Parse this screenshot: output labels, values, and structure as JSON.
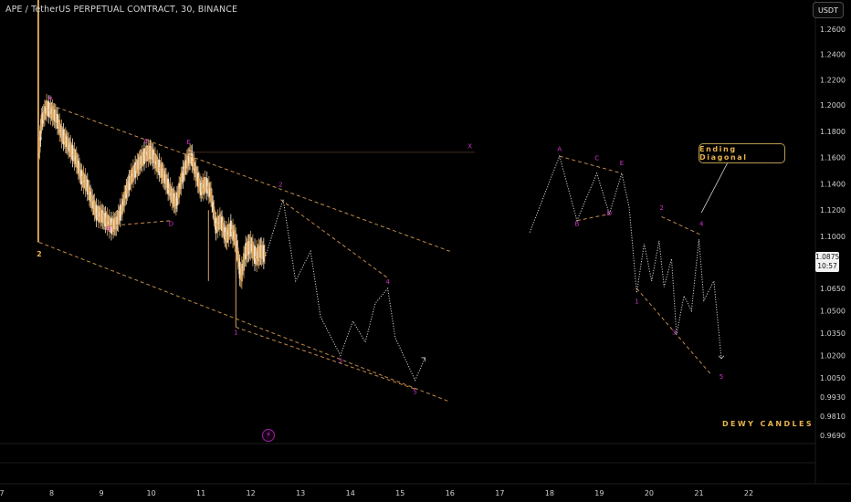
{
  "header": {
    "symbol_title": "APE / TetherUS PERPETUAL CONTRACT, 30, BINANCE",
    "currency_button": "USDT"
  },
  "price_badge": {
    "price": "1.0875",
    "countdown": "10:57"
  },
  "callout_label": "Ending Diagonal",
  "signature": "DEWY CANDLES",
  "lightning_icon": "lightning-icon",
  "colors": {
    "background": "#000000",
    "candle": "#d9a35c",
    "candle_alt": "#f0e6d8",
    "wave_label": "#cc33cc",
    "trendline": "#c08a4a",
    "projection": "#cfcfcf",
    "accent": "#e8b34b"
  },
  "chart_data": {
    "type": "line",
    "title": "APE / TetherUS PERPETUAL CONTRACT, 30, BINANCE",
    "y_axis_ticks": [
      "1.2600",
      "1.2400",
      "1.2200",
      "1.2000",
      "1.1800",
      "1.1600",
      "1.1400",
      "1.1200",
      "1.1000",
      "1.0650",
      "1.0500",
      "1.0350",
      "1.0200",
      "1.0050",
      "0.9930",
      "0.9810",
      "0.9690"
    ],
    "x_axis_ticks": [
      "7",
      "8",
      "9",
      "10",
      "11",
      "12",
      "13",
      "14",
      "15",
      "16",
      "17",
      "18",
      "19",
      "20",
      "21",
      "22"
    ],
    "ylim": [
      0.965,
      1.265
    ],
    "price_series": {
      "name": "",
      "x": [
        7.75,
        7.8,
        7.9,
        8.0,
        8.1,
        8.2,
        8.3,
        8.4,
        8.5,
        8.6,
        8.7,
        8.8,
        8.9,
        9.0,
        9.1,
        9.2,
        9.3,
        9.4,
        9.5,
        9.6,
        9.7,
        9.8,
        9.9,
        10.0,
        10.1,
        10.2,
        10.3,
        10.4,
        10.5,
        10.6,
        10.7,
        10.8,
        10.9,
        11.0,
        11.1,
        11.2,
        11.3,
        11.4,
        11.5,
        11.6,
        11.7,
        11.8,
        11.9,
        12.0,
        12.1,
        12.2,
        12.3
      ],
      "values": [
        1.165,
        1.188,
        1.198,
        1.195,
        1.19,
        1.178,
        1.172,
        1.165,
        1.158,
        1.145,
        1.14,
        1.128,
        1.118,
        1.116,
        1.112,
        1.108,
        1.11,
        1.12,
        1.134,
        1.145,
        1.152,
        1.158,
        1.163,
        1.164,
        1.156,
        1.15,
        1.142,
        1.132,
        1.125,
        1.142,
        1.155,
        1.162,
        1.148,
        1.136,
        1.14,
        1.132,
        1.108,
        1.112,
        1.1,
        1.106,
        1.098,
        1.072,
        1.09,
        1.094,
        1.086,
        1.09,
        1.0875
      ]
    },
    "wave_labels": [
      {
        "label": "2",
        "x": 7.75,
        "y": 1.0865,
        "color": "#e8b34b"
      },
      {
        "label": "A",
        "x": 7.98,
        "y": 1.204
      },
      {
        "label": "B",
        "x": 9.15,
        "y": 1.104
      },
      {
        "label": "C",
        "x": 9.9,
        "y": 1.171
      },
      {
        "label": "D",
        "x": 10.4,
        "y": 1.108
      },
      {
        "label": "E",
        "x": 10.75,
        "y": 1.17
      },
      {
        "label": "X",
        "x": 16.4,
        "y": 1.167
      },
      {
        "label": "1",
        "x": 11.7,
        "y": 1.034
      },
      {
        "label": "2",
        "x": 12.6,
        "y": 1.138
      },
      {
        "label": "3",
        "x": 13.8,
        "y": 1.015
      },
      {
        "label": "4",
        "x": 14.75,
        "y": 1.068
      },
      {
        "label": "5",
        "x": 15.3,
        "y": 0.995
      },
      {
        "label": "A",
        "x": 18.2,
        "y": 1.165
      },
      {
        "label": "B",
        "x": 18.55,
        "y": 1.108
      },
      {
        "label": "C",
        "x": 18.95,
        "y": 1.158
      },
      {
        "label": "D",
        "x": 19.2,
        "y": 1.116
      },
      {
        "label": "E",
        "x": 19.45,
        "y": 1.154
      },
      {
        "label": "1",
        "x": 19.75,
        "y": 1.055
      },
      {
        "label": "2",
        "x": 20.25,
        "y": 1.12
      },
      {
        "label": "3",
        "x": 20.5,
        "y": 1.034
      },
      {
        "label": "4",
        "x": 21.05,
        "y": 1.108
      },
      {
        "label": "5",
        "x": 21.45,
        "y": 1.0045
      }
    ],
    "trendlines": [
      {
        "style": "dashed",
        "points": [
          [
            7.98,
            1.2
          ],
          [
            16.0,
            1.09
          ]
        ]
      },
      {
        "style": "dashed",
        "points": [
          [
            7.75,
            1.096
          ],
          [
            16.0,
            0.99
          ]
        ]
      },
      {
        "style": "dashed",
        "points": [
          [
            9.15,
            1.108
          ],
          [
            10.4,
            1.112
          ]
        ]
      },
      {
        "style": "dashed",
        "points": [
          [
            11.7,
            1.039
          ],
          [
            15.3,
            0.998
          ]
        ]
      },
      {
        "style": "dashed",
        "points": [
          [
            12.6,
            1.128
          ],
          [
            14.75,
            1.072
          ]
        ]
      },
      {
        "style": "solid",
        "points": [
          [
            10.75,
            1.164
          ],
          [
            16.5,
            1.164
          ]
        ]
      },
      {
        "style": "dashed",
        "points": [
          [
            18.2,
            1.161
          ],
          [
            19.45,
            1.148
          ]
        ]
      },
      {
        "style": "dashed",
        "points": [
          [
            18.55,
            1.112
          ],
          [
            19.2,
            1.117
          ]
        ]
      },
      {
        "style": "dashed",
        "points": [
          [
            20.25,
            1.115
          ],
          [
            21.05,
            1.101
          ]
        ]
      },
      {
        "style": "dashed",
        "points": [
          [
            19.75,
            1.065
          ],
          [
            21.25,
            1.007
          ]
        ]
      }
    ],
    "projection_left": {
      "x": [
        12.3,
        12.65,
        12.9,
        13.2,
        13.4,
        13.8,
        14.05,
        14.3,
        14.5,
        14.75,
        14.9,
        15.3,
        15.5
      ],
      "values": [
        1.087,
        1.128,
        1.07,
        1.09,
        1.046,
        1.02,
        1.043,
        1.029,
        1.055,
        1.065,
        1.032,
        1.0035,
        1.0185
      ]
    },
    "projection_right": {
      "x": [
        17.6,
        18.2,
        18.55,
        18.95,
        19.2,
        19.45,
        19.6,
        19.75,
        19.9,
        20.05,
        20.2,
        20.3,
        20.45,
        20.55,
        20.7,
        20.85,
        21.0,
        21.1,
        21.3,
        21.45
      ],
      "values": [
        1.103,
        1.161,
        1.112,
        1.148,
        1.117,
        1.148,
        1.122,
        1.062,
        1.095,
        1.07,
        1.097,
        1.066,
        1.085,
        1.034,
        1.06,
        1.05,
        1.098,
        1.057,
        1.07,
        1.018
      ]
    },
    "annotations": [
      {
        "text": "Ending Diagonal",
        "type": "callout"
      },
      {
        "text": "DEWY CANDLES",
        "type": "watermark"
      }
    ],
    "grid": false
  }
}
